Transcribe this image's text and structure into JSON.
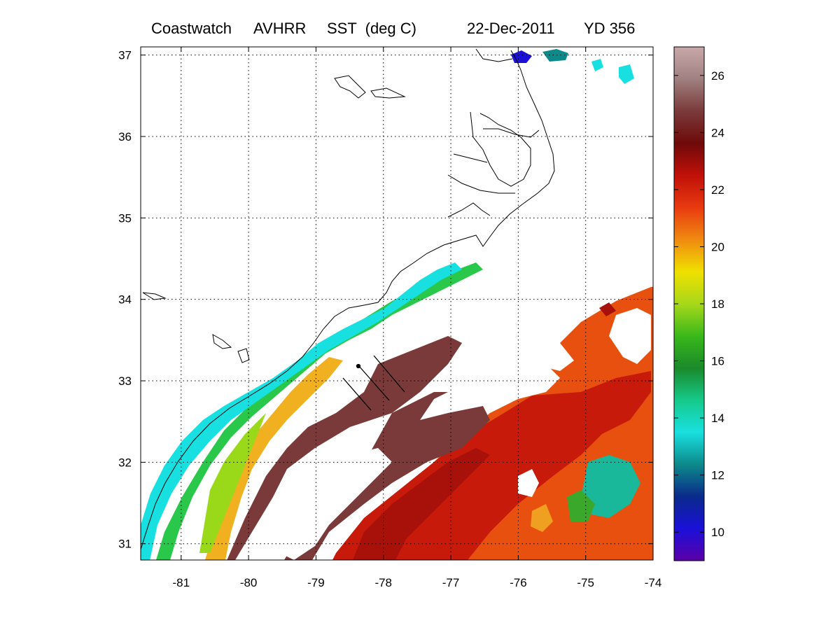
{
  "title": {
    "product": "Coastwatch",
    "sensor": "AVHRR",
    "variable": "SST  (deg C)",
    "date": "22-Dec-2011",
    "yearday": "YD 356"
  },
  "map": {
    "lon_range": [
      -81.6,
      -74
    ],
    "lat_range": [
      30.8,
      37.1
    ],
    "lon_ticks": [
      -81,
      -80,
      -79,
      -78,
      -77,
      -76,
      -75,
      -74
    ],
    "lat_ticks": [
      31,
      32,
      33,
      34,
      35,
      36,
      37
    ],
    "lon_tick_labels": [
      "-81",
      "-80",
      "-79",
      "-78",
      "-77",
      "-76",
      "-75",
      "-74"
    ],
    "lat_tick_labels": [
      "31",
      "32",
      "33",
      "34",
      "35",
      "36",
      "37"
    ],
    "grid": "dotted"
  },
  "colorbar": {
    "range": [
      9,
      27
    ],
    "ticks": [
      10,
      12,
      14,
      16,
      18,
      20,
      22,
      24,
      26
    ],
    "tick_labels": [
      "10",
      "12",
      "14",
      "16",
      "18",
      "20",
      "22",
      "24",
      "26"
    ],
    "colormap": [
      "#5b00a8",
      "#1a10d8",
      "#0a2a8a",
      "#0c8a8a",
      "#19e0e0",
      "#16c98a",
      "#1a8a2a",
      "#3ab81a",
      "#a8d81a",
      "#f0e000",
      "#f08a10",
      "#e83a10",
      "#c01008",
      "#6e0a0a",
      "#7a3a3a",
      "#a08080",
      "#c8a8a8"
    ]
  },
  "colors": {
    "cold_shelf": "#19e0e0",
    "mid_shelf": "#2ac84a",
    "front": "#f0b020",
    "gulf_stream": "#c81a0a",
    "warm_core": "#7a3a3a",
    "offshore": "#e8500f",
    "cloud": "#ffffff",
    "coastline": "#000000"
  }
}
